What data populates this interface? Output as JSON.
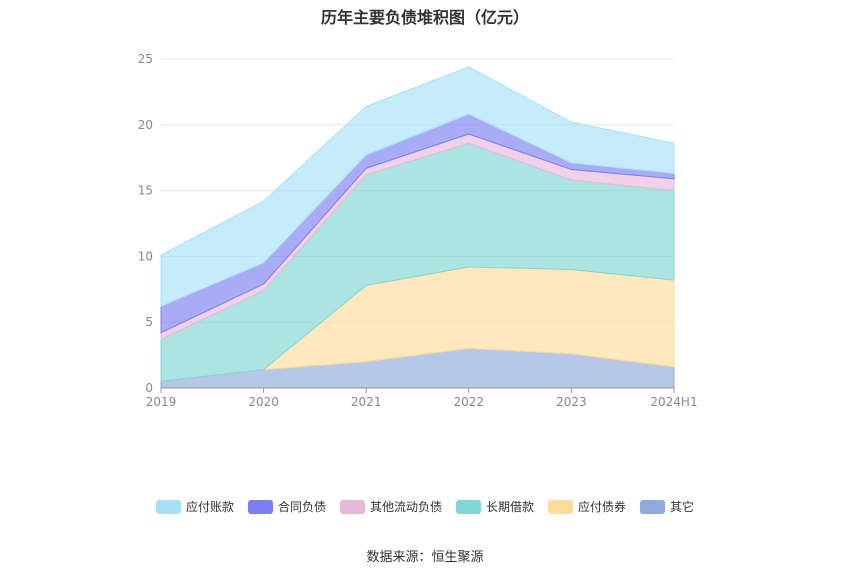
{
  "chart_data": {
    "type": "area",
    "stacked": true,
    "title": "历年主要负债堆积图（亿元）",
    "categories": [
      "2019",
      "2020",
      "2021",
      "2022",
      "2023",
      "2024H1"
    ],
    "ylim": [
      0,
      25
    ],
    "yticks": [
      "0",
      "5",
      "10",
      "15",
      "20",
      "25"
    ],
    "grid": true,
    "legend_position": "bottom",
    "series": [
      {
        "name": "其它",
        "color": "#8FAADC",
        "values": [
          0.5,
          1.4,
          2.0,
          3.0,
          2.6,
          1.6
        ]
      },
      {
        "name": "应付债券",
        "color": "#FFDB99",
        "values": [
          0.0,
          0.0,
          5.8,
          6.2,
          6.4,
          6.6
        ]
      },
      {
        "name": "长期借款",
        "color": "#7FD6D3",
        "values": [
          3.2,
          6.0,
          8.4,
          9.4,
          6.8,
          6.8
        ]
      },
      {
        "name": "其他流动负债",
        "color": "#E8B8DC",
        "values": [
          0.5,
          0.5,
          0.5,
          0.7,
          0.8,
          0.9
        ]
      },
      {
        "name": "合同负债",
        "color": "#7B7FF0",
        "values": [
          2.0,
          1.6,
          1.0,
          1.5,
          0.5,
          0.4
        ]
      },
      {
        "name": "应付账款",
        "color": "#A8E0F8",
        "values": [
          3.9,
          4.7,
          3.7,
          3.6,
          3.1,
          2.3
        ]
      }
    ],
    "legend_order": [
      "应付账款",
      "合同负债",
      "其他流动负债",
      "长期借款",
      "应付债券",
      "其它"
    ]
  },
  "source": "数据来源：恒生聚源"
}
